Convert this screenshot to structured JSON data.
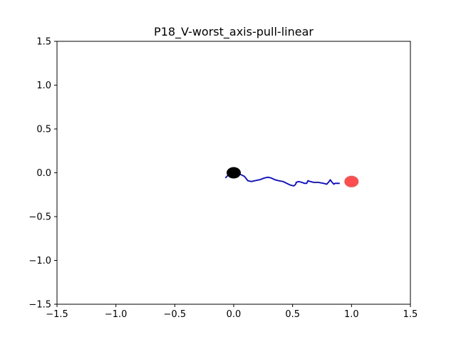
{
  "chart_data": {
    "type": "line",
    "title": "P18_V-worst_axis-pull-linear",
    "xlabel": "",
    "ylabel": "",
    "xlim": [
      -1.5,
      1.5
    ],
    "ylim": [
      -1.5,
      1.5
    ],
    "x_ticks": [
      "−1.5",
      "−1.0",
      "−0.5",
      "0.0",
      "0.5",
      "1.0",
      "1.5"
    ],
    "y_ticks": [
      "−1.5",
      "−1.0",
      "−0.5",
      "0.0",
      "0.5",
      "1.0",
      "1.5"
    ],
    "x_tick_values": [
      -1.5,
      -1.0,
      -0.5,
      0.0,
      0.5,
      1.0,
      1.5
    ],
    "y_tick_values": [
      -1.5,
      -1.0,
      -0.5,
      0.0,
      0.5,
      1.0,
      1.5
    ],
    "grid": false,
    "series": [
      {
        "color": "#0000ff",
        "points": [
          [
            -0.07,
            -0.06
          ],
          [
            -0.05,
            -0.03
          ],
          [
            -0.02,
            -0.01
          ],
          [
            0.0,
            0.0
          ],
          [
            0.03,
            -0.01
          ],
          [
            0.06,
            -0.02
          ],
          [
            0.09,
            -0.04
          ],
          [
            0.12,
            -0.09
          ],
          [
            0.15,
            -0.1
          ],
          [
            0.18,
            -0.09
          ],
          [
            0.22,
            -0.08
          ],
          [
            0.26,
            -0.06
          ],
          [
            0.29,
            -0.05
          ],
          [
            0.32,
            -0.06
          ],
          [
            0.35,
            -0.08
          ],
          [
            0.38,
            -0.09
          ],
          [
            0.42,
            -0.1
          ],
          [
            0.45,
            -0.12
          ],
          [
            0.48,
            -0.14
          ],
          [
            0.51,
            -0.15
          ],
          [
            0.52,
            -0.14
          ],
          [
            0.53,
            -0.12
          ],
          [
            0.53,
            -0.11
          ],
          [
            0.55,
            -0.1
          ],
          [
            0.58,
            -0.11
          ],
          [
            0.6,
            -0.12
          ],
          [
            0.62,
            -0.12
          ],
          [
            0.63,
            -0.09
          ],
          [
            0.65,
            -0.1
          ],
          [
            0.68,
            -0.11
          ],
          [
            0.72,
            -0.11
          ],
          [
            0.76,
            -0.12
          ],
          [
            0.79,
            -0.13
          ],
          [
            0.81,
            -0.1
          ],
          [
            0.82,
            -0.08
          ],
          [
            0.83,
            -0.1
          ],
          [
            0.85,
            -0.13
          ],
          [
            0.86,
            -0.12
          ],
          [
            0.88,
            -0.12
          ],
          [
            0.9,
            -0.12
          ]
        ]
      }
    ],
    "markers": [
      {
        "x": 0.0,
        "y": 0.0,
        "color": "#000000",
        "opacity": 1.0
      },
      {
        "x": 1.0,
        "y": -0.1,
        "color": "#ff0000",
        "opacity": 0.7
      }
    ]
  }
}
